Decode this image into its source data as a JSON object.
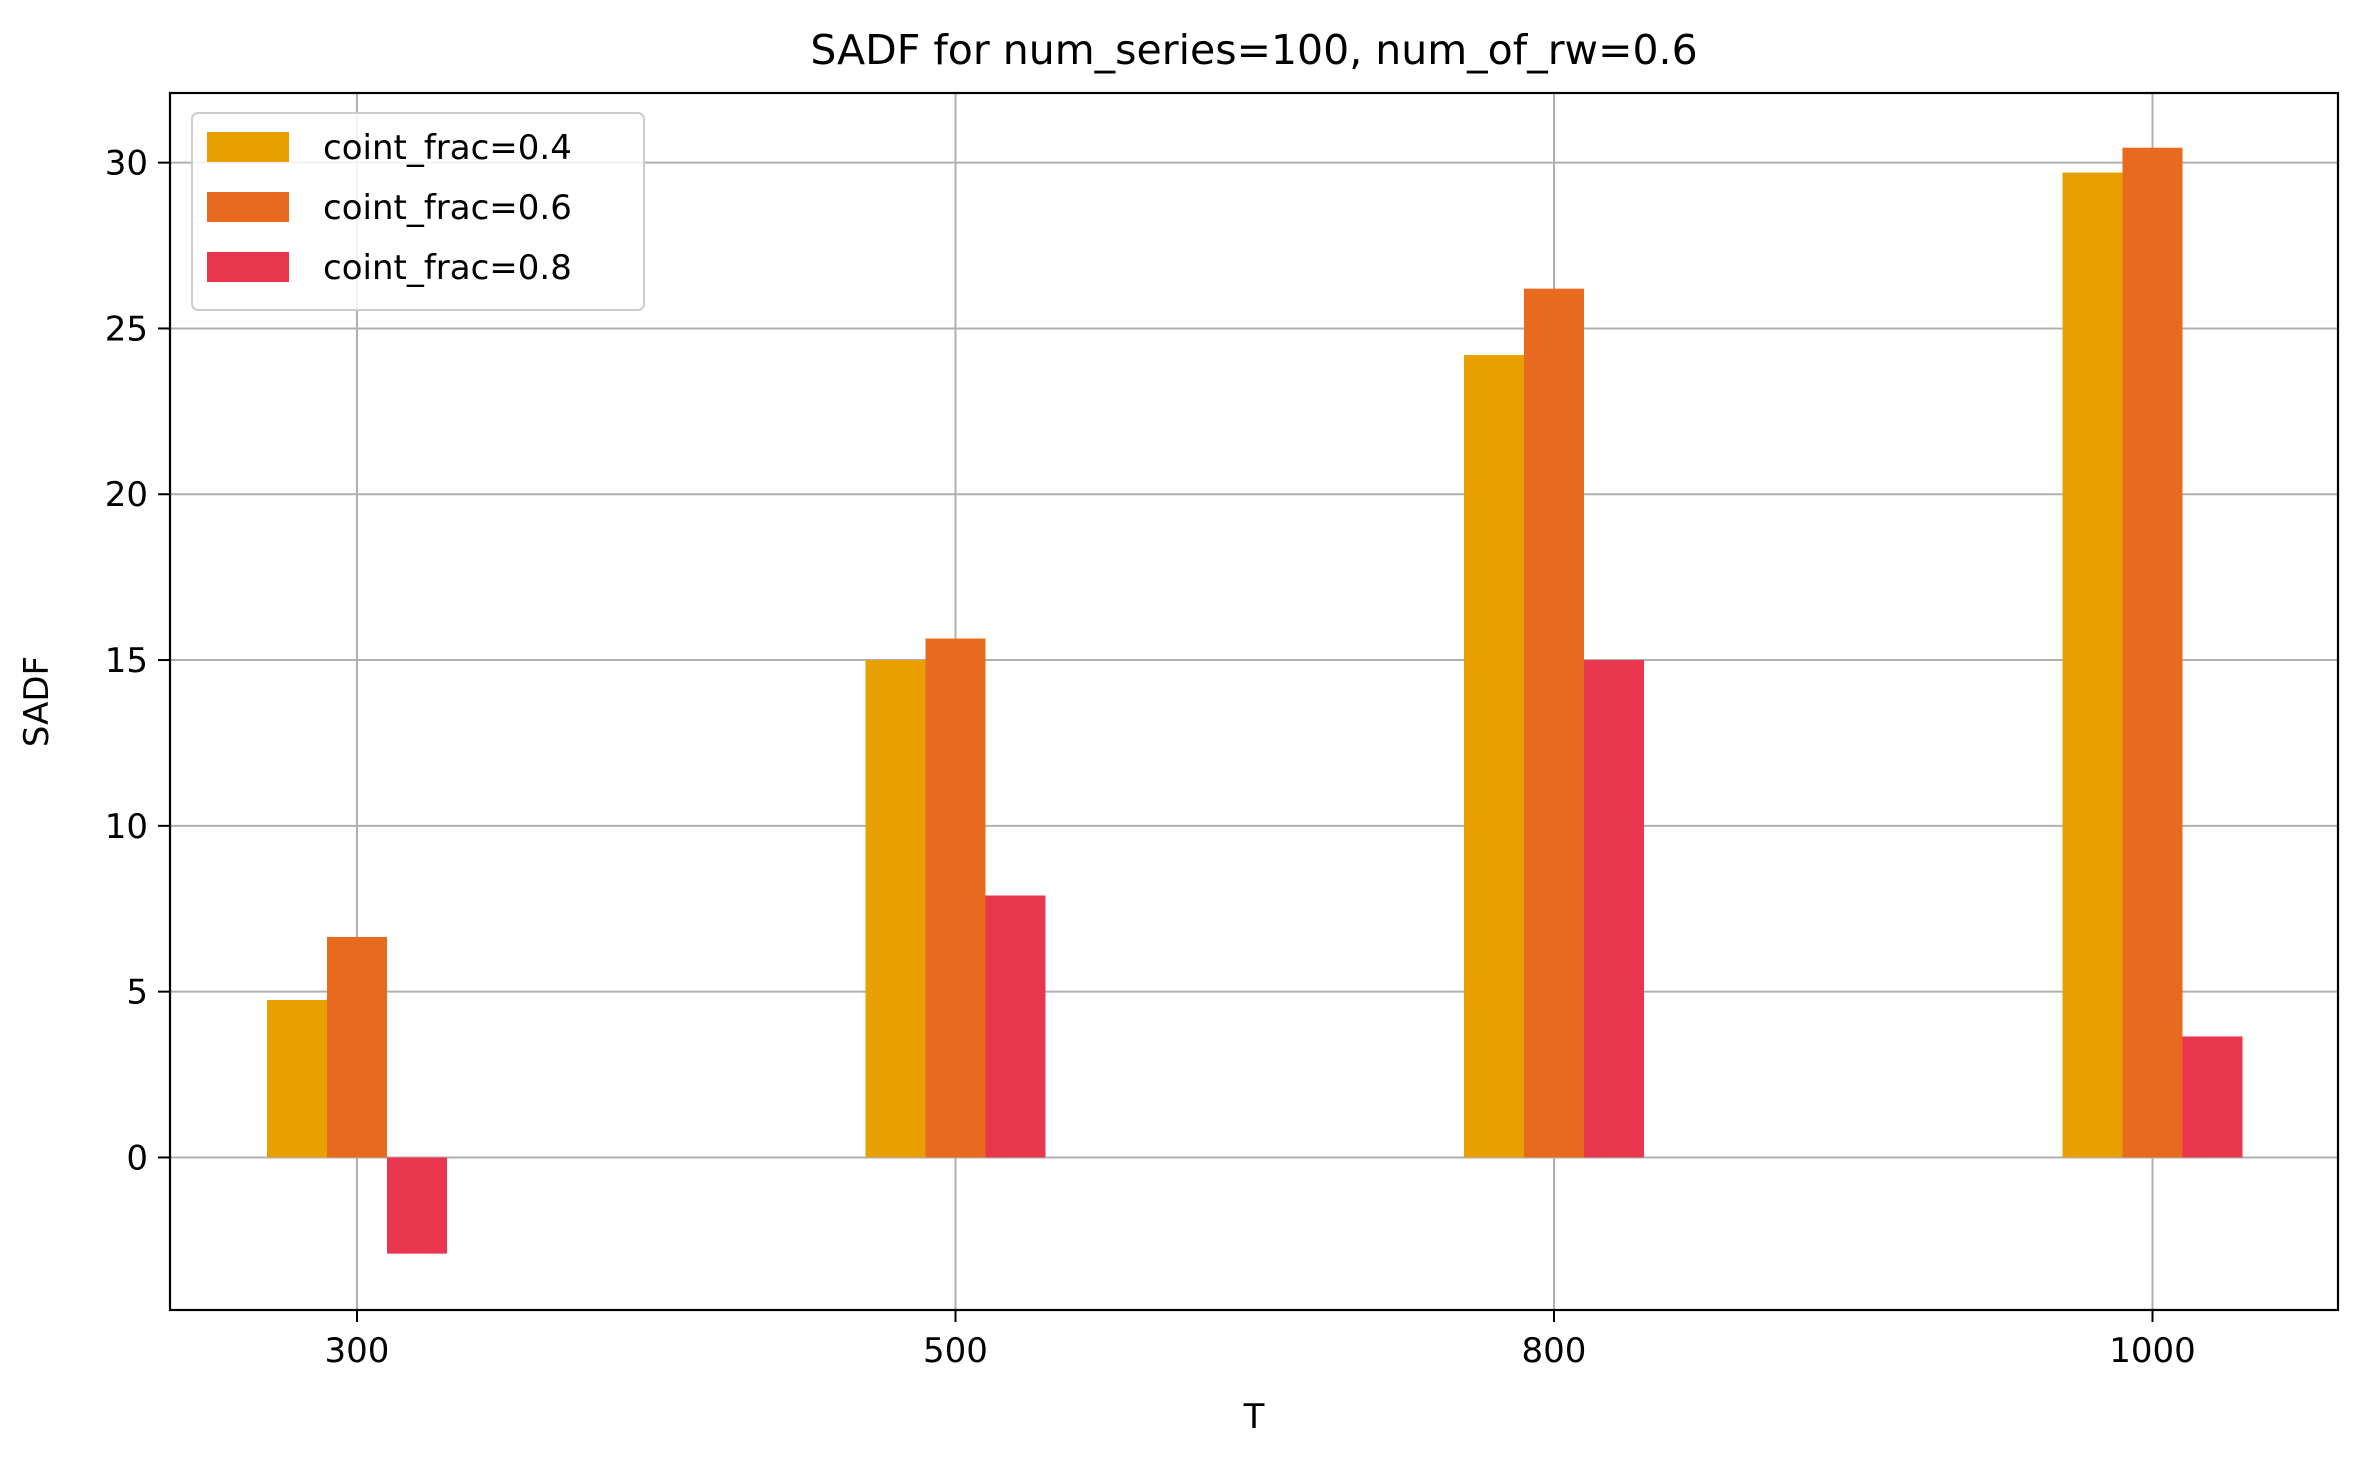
{
  "chart_data": {
    "type": "bar",
    "title": "SADF for num_series=100, num_of_rw=0.6",
    "xlabel": "T",
    "ylabel": "SADF",
    "categories": [
      "300",
      "500",
      "800",
      "1000"
    ],
    "series": [
      {
        "name": "coint_frac=0.4",
        "color": "#e8a000",
        "values": [
          4.75,
          15.0,
          24.2,
          29.7
        ]
      },
      {
        "name": "coint_frac=0.6",
        "color": "#e86a1f",
        "values": [
          6.65,
          15.65,
          26.2,
          30.45
        ]
      },
      {
        "name": "coint_frac=0.8",
        "color": "#e8364f",
        "values": [
          -2.9,
          7.9,
          15.0,
          3.65
        ]
      }
    ],
    "yticks": [
      0,
      5,
      10,
      15,
      20,
      25,
      30
    ],
    "ylim": [
      -4.6,
      32.1
    ],
    "grid": true,
    "legend_position": "top-left"
  }
}
